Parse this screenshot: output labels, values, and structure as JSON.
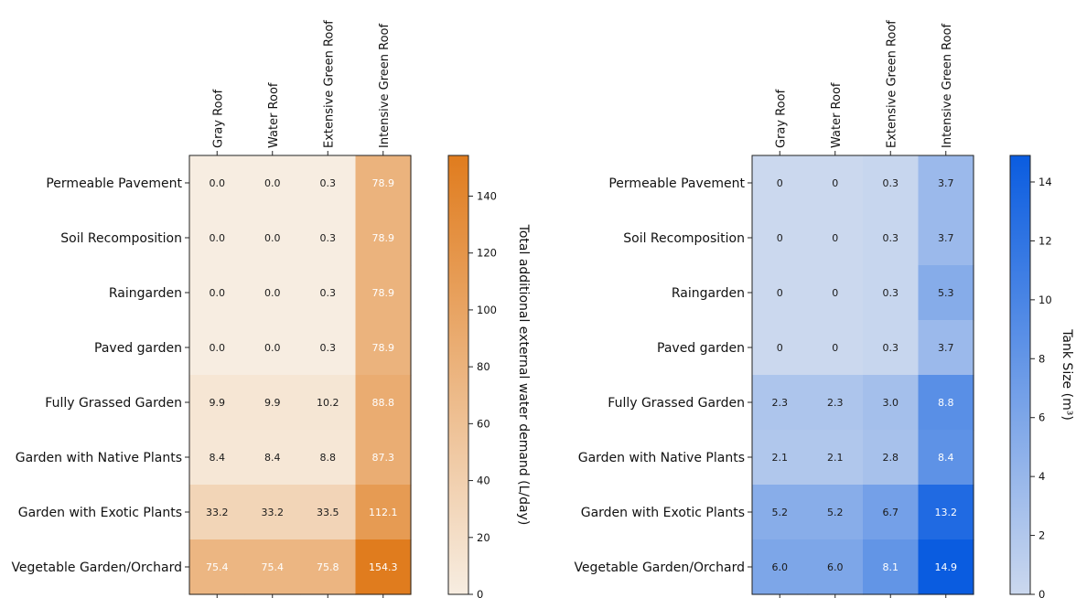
{
  "chart_data": [
    {
      "type": "heatmap",
      "title": "",
      "rows": [
        "Permeable Pavement",
        "Soil Recomposition",
        "Raingarden",
        "Paved garden",
        "Fully Grassed Garden",
        "Garden with Native Plants",
        "Garden with Exotic Plants",
        "Vegetable Garden/Orchard"
      ],
      "columns": [
        "Gray Roof",
        "Water Roof",
        "Extensive Green Roof",
        "Intensive Green Roof"
      ],
      "values": [
        [
          0.0,
          0.0,
          0.3,
          78.9
        ],
        [
          0.0,
          0.0,
          0.3,
          78.9
        ],
        [
          0.0,
          0.0,
          0.3,
          78.9
        ],
        [
          0.0,
          0.0,
          0.3,
          78.9
        ],
        [
          9.9,
          9.9,
          10.2,
          88.8
        ],
        [
          8.4,
          8.4,
          8.8,
          87.3
        ],
        [
          33.2,
          33.2,
          33.5,
          112.1
        ],
        [
          75.4,
          75.4,
          75.8,
          154.3
        ]
      ],
      "labels": [
        [
          "0.0",
          "0.0",
          "0.3",
          "78.9"
        ],
        [
          "0.0",
          "0.0",
          "0.3",
          "78.9"
        ],
        [
          "0.0",
          "0.0",
          "0.3",
          "78.9"
        ],
        [
          "0.0",
          "0.0",
          "0.3",
          "78.9"
        ],
        [
          "9.9",
          "9.9",
          "10.2",
          "88.8"
        ],
        [
          "8.4",
          "8.4",
          "8.8",
          "87.3"
        ],
        [
          "33.2",
          "33.2",
          "33.5",
          "112.1"
        ],
        [
          "75.4",
          "75.4",
          "75.8",
          "154.3"
        ]
      ],
      "colorbar": {
        "label": "Total additional external water demand (L/day)",
        "min": 0,
        "max": 154.3,
        "ticks": [
          0,
          20,
          40,
          60,
          80,
          100,
          120,
          140
        ],
        "tick_labels": [
          "0",
          "20",
          "40",
          "60",
          "80",
          "100",
          "120",
          "140"
        ],
        "colors": [
          "#f7ede1",
          "#e07c1e"
        ]
      },
      "text_colors": {
        "dark": "#1a1a1a",
        "light": "#ffffff"
      },
      "light_text_threshold": 0.45
    },
    {
      "type": "heatmap",
      "title": "",
      "rows": [
        "Permeable Pavement",
        "Soil Recomposition",
        "Raingarden",
        "Paved garden",
        "Fully Grassed Garden",
        "Garden with Native Plants",
        "Garden with Exotic Plants",
        "Vegetable Garden/Orchard"
      ],
      "columns": [
        "Gray Roof",
        "Water Roof",
        "Extensive Green Roof",
        "Intensive Green Roof"
      ],
      "values": [
        [
          0,
          0,
          0.3,
          3.7
        ],
        [
          0,
          0,
          0.3,
          3.7
        ],
        [
          0,
          0,
          0.3,
          5.3
        ],
        [
          0,
          0,
          0.3,
          3.7
        ],
        [
          2.3,
          2.3,
          3.0,
          8.8
        ],
        [
          2.1,
          2.1,
          2.8,
          8.4
        ],
        [
          5.2,
          5.2,
          6.7,
          13.2
        ],
        [
          6.0,
          6.0,
          8.1,
          14.9
        ]
      ],
      "labels": [
        [
          "0",
          "0",
          "0.3",
          "3.7"
        ],
        [
          "0",
          "0",
          "0.3",
          "3.7"
        ],
        [
          "0",
          "0",
          "0.3",
          "5.3"
        ],
        [
          "0",
          "0",
          "0.3",
          "3.7"
        ],
        [
          "2.3",
          "2.3",
          "3.0",
          "8.8"
        ],
        [
          "2.1",
          "2.1",
          "2.8",
          "8.4"
        ],
        [
          "5.2",
          "5.2",
          "6.7",
          "13.2"
        ],
        [
          "6.0",
          "6.0",
          "8.1",
          "14.9"
        ]
      ],
      "colorbar": {
        "label": "Tank Size (m³)",
        "min": 0,
        "max": 14.9,
        "ticks": [
          0,
          2,
          4,
          6,
          8,
          10,
          12,
          14
        ],
        "tick_labels": [
          "0",
          "2",
          "4",
          "6",
          "8",
          "10",
          "12",
          "14"
        ],
        "colors": [
          "#cbd8ee",
          "#0a5ce0"
        ]
      },
      "text_colors": {
        "dark": "#1a1a1a",
        "light": "#ffffff"
      },
      "light_text_threshold": 0.5
    }
  ]
}
